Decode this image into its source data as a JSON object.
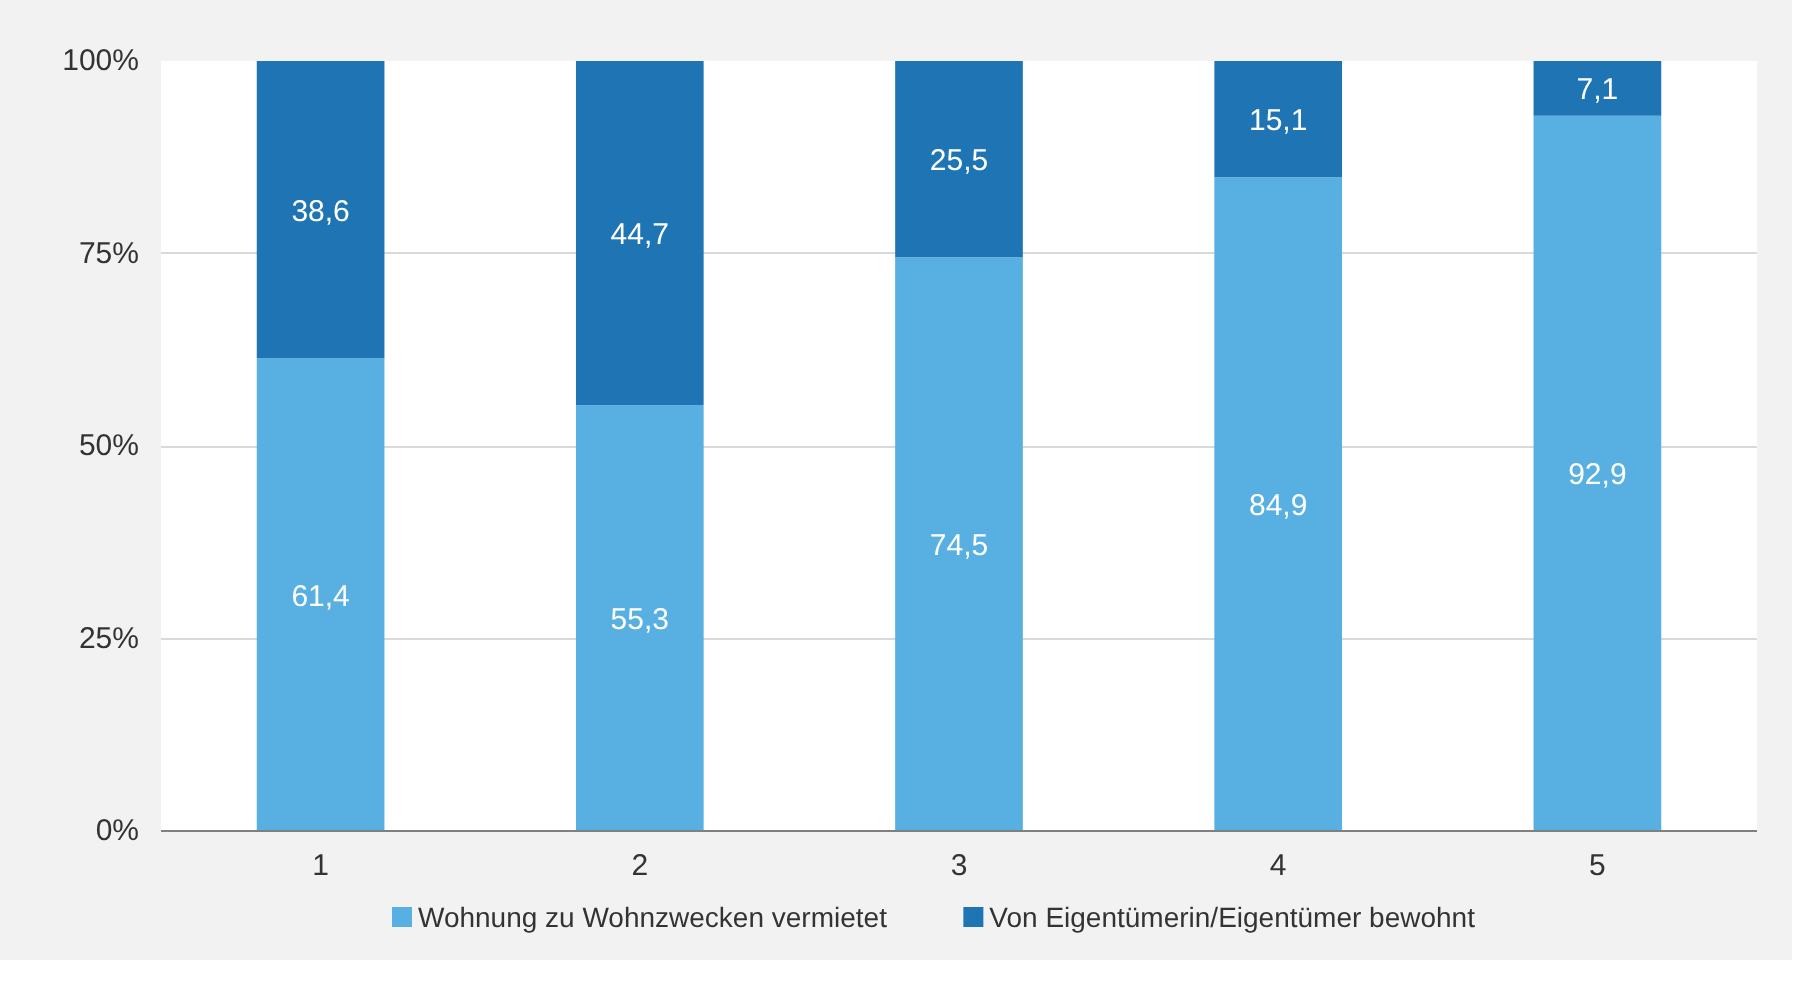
{
  "chart_data": {
    "type": "bar",
    "stacked": true,
    "categories": [
      "1",
      "2",
      "3",
      "4",
      "5"
    ],
    "series": [
      {
        "name": "Wohnung zu Wohnzwecken vermietet",
        "color": "#58afe1",
        "values": [
          61.4,
          55.3,
          74.5,
          84.9,
          92.9
        ],
        "value_labels": [
          "61,4",
          "55,3",
          "74,5",
          "84,9",
          "92,9"
        ]
      },
      {
        "name": "Von Eigentümerin/Eigentümer bewohnt",
        "color": "#1f75b3",
        "values": [
          38.6,
          44.7,
          25.5,
          15.1,
          7.1
        ],
        "value_labels": [
          "38,6",
          "44,7",
          "25,5",
          "15,1",
          "7,1"
        ]
      }
    ],
    "ylim": [
      0,
      100
    ],
    "yticks": [
      {
        "value": 0,
        "label": "0%"
      },
      {
        "value": 25,
        "label": "25%"
      },
      {
        "value": 50,
        "label": "50%"
      },
      {
        "value": 75,
        "label": "75%"
      },
      {
        "value": 100,
        "label": "100%"
      }
    ],
    "grid": "y",
    "legend": "bottom"
  }
}
